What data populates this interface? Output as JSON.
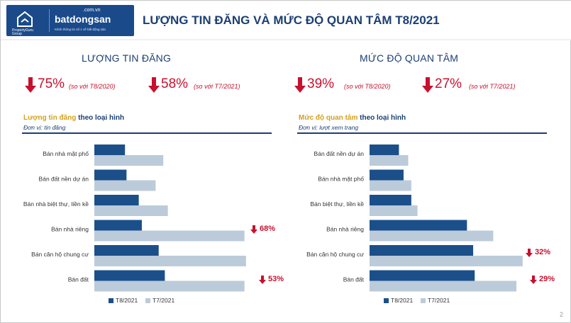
{
  "brand": {
    "pg_text": "PropertyGuru",
    "pg_group": "Group",
    "bds_name": "batdongsan",
    "bds_domain": ".com.vn",
    "bds_tagline": "Kênh thông tin số 1 về bất động sản"
  },
  "page_title": "LƯỢNG TIN ĐĂNG VÀ MỨC ĐỘ QUAN TÂM T8/2021",
  "page_number": "2",
  "left_section": {
    "title": "LƯỢNG TIN ĐĂNG",
    "stats": [
      {
        "value": "75%",
        "compare": "(so với T8/2020)"
      },
      {
        "value": "58%",
        "compare": "(so với T7/2021)"
      }
    ],
    "subtitle_gold": "Lượng tin đăng",
    "subtitle_navy": "theo loại hình",
    "unit": "Đơn vị: tin đăng"
  },
  "right_section": {
    "title": "MỨC ĐỘ QUAN TÂM",
    "stats": [
      {
        "value": "39%",
        "compare": "(so với T8/2020)"
      },
      {
        "value": "27%",
        "compare": "(so với T7/2021)"
      }
    ],
    "subtitle_gold": "Mức độ quan tâm",
    "subtitle_navy": "theo loại hình",
    "unit": "Đơn vị: lượt xem trang"
  },
  "colors": {
    "navy": "#1b4f8a",
    "light": "#bccbd9",
    "title": "#1b3f73",
    "red": "#c8102e",
    "gold": "#d4a11e"
  },
  "chart_data": [
    {
      "type": "bar",
      "orientation": "horizontal",
      "categories": [
        "Bán nhà mặt phố",
        "Bán đất nền dự án",
        "Bán nhà biệt thự, liền kề",
        "Bán nhà riêng",
        "Bán căn hộ chung cư",
        "Bán đất"
      ],
      "series": [
        {
          "name": "T8/2021",
          "values": [
            20,
            21,
            29,
            31,
            42,
            46
          ]
        },
        {
          "name": "T7/2021",
          "values": [
            45,
            40,
            48,
            98,
            99,
            98
          ]
        }
      ],
      "callouts": [
        {
          "category": "Bán nhà riêng",
          "text": "68%"
        },
        {
          "category": "Bán đất",
          "text": "53%"
        }
      ],
      "xlim": [
        0,
        100
      ],
      "legend": "bottom",
      "grid": false
    },
    {
      "type": "bar",
      "orientation": "horizontal",
      "categories": [
        "Bán đất nền dự án",
        "Bán nhà mặt phố",
        "Bán biệt thự, liền kề",
        "Bán nhà riêng",
        "Bán căn hộ chung cư",
        "Bán đất"
      ],
      "series": [
        {
          "name": "T8/2021",
          "values": [
            19,
            22,
            27,
            63,
            67,
            68
          ]
        },
        {
          "name": "T7/2021",
          "values": [
            25,
            27,
            31,
            80,
            99,
            95
          ]
        }
      ],
      "callouts": [
        {
          "category": "Bán căn hộ chung cư",
          "text": "32%"
        },
        {
          "category": "Bán đất",
          "text": "29%"
        }
      ],
      "xlim": [
        0,
        100
      ],
      "legend": "bottom",
      "grid": false
    }
  ]
}
